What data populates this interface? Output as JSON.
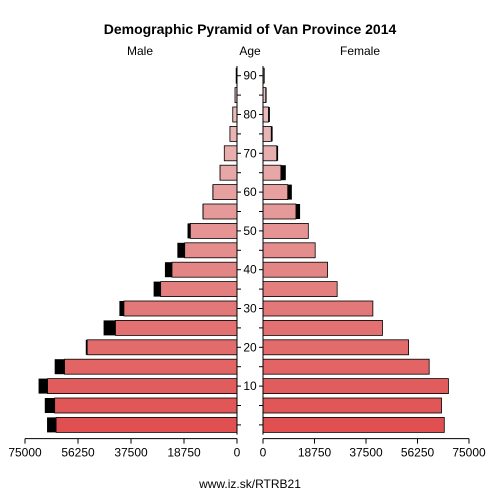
{
  "chart_data": {
    "type": "bar",
    "title": "Demographic Pyramid of Van Province 2014",
    "left_label": "Male",
    "center_label": "Age",
    "right_label": "Female",
    "age_groups": [
      "0-4",
      "5-9",
      "10-14",
      "15-19",
      "20-24",
      "25-29",
      "30-34",
      "35-39",
      "40-44",
      "45-49",
      "50-54",
      "55-59",
      "60-64",
      "65-69",
      "70-74",
      "75-79",
      "80-84",
      "85-89",
      "90+"
    ],
    "age_tick_labels": [
      "10",
      "20",
      "30",
      "40",
      "50",
      "60",
      "70",
      "80",
      "90"
    ],
    "xlim": [
      0,
      75000
    ],
    "x_tick_labels_left": [
      "75000",
      "56250",
      "37500",
      "18750",
      "0"
    ],
    "x_tick_labels_right": [
      "0",
      "18750",
      "37500",
      "56250",
      "75000"
    ],
    "series": [
      {
        "values_male": [
          64000,
          64500,
          67000,
          61000,
          53000,
          43000,
          40000,
          27000,
          23000,
          18500,
          16500,
          12000,
          8500,
          6000,
          4500,
          2500,
          1500,
          700,
          300
        ]
      },
      {
        "values_male_excess": [
          3200,
          3500,
          3200,
          3500,
          500,
          4200,
          1600,
          2500,
          2500,
          2600,
          1000,
          200,
          200,
          100,
          100,
          100,
          100,
          50,
          30
        ]
      },
      {
        "values_female": [
          66000,
          65000,
          67500,
          60500,
          53000,
          43500,
          40000,
          27000,
          23500,
          19000,
          16500,
          12000,
          9000,
          6500,
          5000,
          3000,
          2000,
          1000,
          400
        ]
      },
      {
        "values_female_excess": [
          0,
          0,
          0,
          0,
          0,
          0,
          0,
          0,
          0,
          0,
          0,
          1500,
          1500,
          1800,
          500,
          500,
          500,
          300,
          200
        ]
      }
    ]
  },
  "footer": "www.iz.sk/RTRB21"
}
